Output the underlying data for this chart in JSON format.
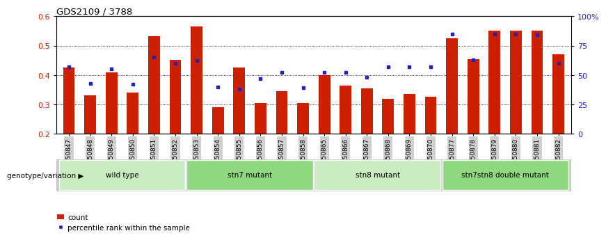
{
  "title": "GDS2109 / 3788",
  "categories": [
    "GSM50847",
    "GSM50848",
    "GSM50849",
    "GSM50850",
    "GSM50851",
    "GSM50852",
    "GSM50853",
    "GSM50854",
    "GSM50855",
    "GSM50856",
    "GSM50857",
    "GSM50858",
    "GSM50865",
    "GSM50866",
    "GSM50867",
    "GSM50868",
    "GSM50869",
    "GSM50870",
    "GSM50877",
    "GSM50878",
    "GSM50879",
    "GSM50880",
    "GSM50881",
    "GSM50882"
  ],
  "bar_values": [
    0.425,
    0.33,
    0.41,
    0.34,
    0.532,
    0.452,
    0.565,
    0.29,
    0.425,
    0.305,
    0.345,
    0.305,
    0.4,
    0.365,
    0.355,
    0.32,
    0.335,
    0.325,
    0.525,
    0.455,
    0.55,
    0.55,
    0.55,
    0.47
  ],
  "dot_pct": [
    57,
    43,
    55,
    42,
    65,
    60,
    62,
    40,
    38,
    47,
    52,
    39,
    52,
    52,
    48,
    57,
    57,
    57,
    85,
    63,
    85,
    85,
    84,
    60
  ],
  "groups": [
    {
      "label": "wild type",
      "start": 0,
      "end": 6,
      "color": "#c8ecc0"
    },
    {
      "label": "stn7 mutant",
      "start": 6,
      "end": 12,
      "color": "#90d880"
    },
    {
      "label": "stn8 mutant",
      "start": 12,
      "end": 18,
      "color": "#c8ecc0"
    },
    {
      "label": "stn7stn8 double mutant",
      "start": 18,
      "end": 24,
      "color": "#90d880"
    }
  ],
  "bar_color": "#cc2000",
  "dot_color": "#2222bb",
  "ylim": [
    0.2,
    0.6
  ],
  "yticks": [
    0.2,
    0.3,
    0.4,
    0.5,
    0.6
  ],
  "pct_ticks": [
    0,
    25,
    50,
    75,
    100
  ],
  "pct_tick_labels": [
    "0",
    "25",
    "50",
    "75",
    "100%"
  ],
  "grid_lines": [
    0.3,
    0.4,
    0.5
  ],
  "legend_bar": "count",
  "legend_dot": "percentile rank within the sample",
  "group_header": "genotype/variation",
  "tick_bg_color": "#d0d0d0",
  "left_tick_color": "#cc2000",
  "right_tick_color": "#2222bb"
}
